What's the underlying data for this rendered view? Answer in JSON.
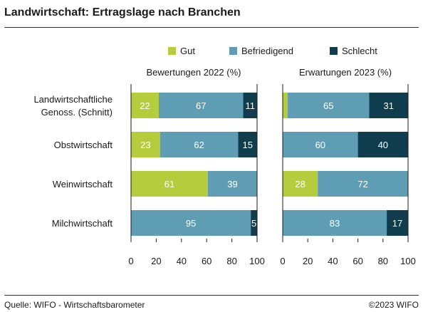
{
  "title": "Landwirtschaft: Ertragslage nach Branchen",
  "footer": {
    "source": "Quelle: WIFO - Wirtschaftsbarometer",
    "copyright": "©2023 WIFO"
  },
  "colors": {
    "gut": "#b5cc3c",
    "befriedigend": "#5f9db5",
    "schlecht": "#0f3d4e",
    "label_dark": "#ffffff"
  },
  "chart_data": {
    "type": "bar",
    "orientation": "horizontal",
    "stacked": true,
    "legend": {
      "position": "top",
      "entries": [
        "Gut",
        "Befriedigend",
        "Schlecht"
      ]
    },
    "categories": [
      "Landwirtschaftliche Genoss. (Schnitt)",
      "Obstwirtschaft",
      "Weinwirtschaft",
      "Milchwirtschaft"
    ],
    "xlim": [
      0,
      100
    ],
    "xticks": [
      0,
      20,
      40,
      60,
      80,
      100
    ],
    "panels": [
      {
        "title": "Bewertungen 2022 (%)",
        "series": [
          {
            "name": "Gut",
            "values": [
              22,
              23,
              61,
              0
            ],
            "labels": [
              "22",
              "23",
              "61",
              ""
            ]
          },
          {
            "name": "Befriedigend",
            "values": [
              67,
              62,
              39,
              95
            ],
            "labels": [
              "67",
              "62",
              "39",
              "95"
            ]
          },
          {
            "name": "Schlecht",
            "values": [
              11,
              15,
              0,
              5
            ],
            "labels": [
              "11",
              "15",
              "",
              "5"
            ]
          }
        ]
      },
      {
        "title": "Erwartungen 2023 (%)",
        "series": [
          {
            "name": "Gut",
            "values": [
              4,
              0,
              28,
              0
            ],
            "labels": [
              "",
              "",
              "28",
              ""
            ]
          },
          {
            "name": "Befriedigend",
            "values": [
              65,
              60,
              72,
              83
            ],
            "labels": [
              "65",
              "60",
              "72",
              "83"
            ]
          },
          {
            "name": "Schlecht",
            "values": [
              31,
              40,
              0,
              17
            ],
            "labels": [
              "31",
              "40",
              "",
              "17"
            ]
          }
        ]
      }
    ]
  }
}
